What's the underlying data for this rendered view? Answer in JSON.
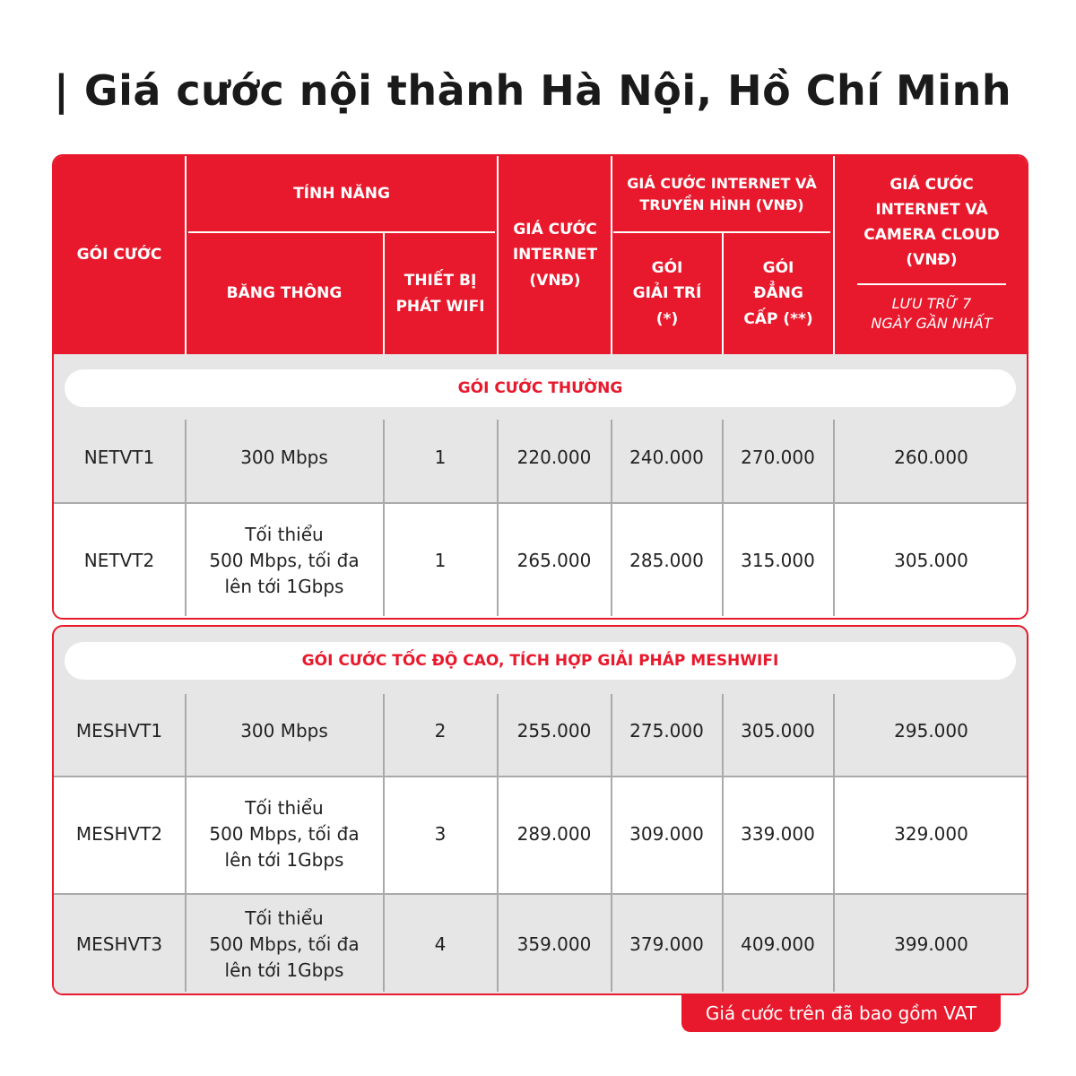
{
  "title": "| Giá cước nội thành Hà Nội, Hồ Chí Minh",
  "header": {
    "goi_cuoc": "GÓI CƯỚC",
    "tinh_nang": "TÍNH NĂNG",
    "bang_thong": "BĂNG THÔNG",
    "thiet_bi": "THIẾT BỊ PHÁT WIFI",
    "gia_internet": "GIÁ CƯỚC INTERNET (VNĐ)",
    "gia_truyen_hinh": "GIÁ CƯỚC INTERNET VÀ TRUYỀN HÌNH (VNĐ)",
    "goi_giai_tri": "GÓI GIẢI TRÍ (*)",
    "goi_dang_cap": "GÓI ĐẲNG CẤP (**)",
    "gia_camera": "GIÁ CƯỚC INTERNET VÀ CAMERA CLOUD (VNĐ)",
    "luu_tru": "LƯU TRỮ 7 NGÀY GẦN NHẤT"
  },
  "sections": [
    {
      "banner": "GÓI CƯỚC THƯỜNG",
      "rows": [
        {
          "name": "NETVT1",
          "bandwidth": "300 Mbps",
          "devices": "1",
          "internet": "220.000",
          "giai_tri": "240.000",
          "dang_cap": "270.000",
          "camera": "260.000"
        },
        {
          "name": "NETVT2",
          "bandwidth": "Tối thiểu\n500 Mbps, tối đa\nlên tới 1Gbps",
          "devices": "1",
          "internet": "265.000",
          "giai_tri": "285.000",
          "dang_cap": "315.000",
          "camera": "305.000"
        }
      ]
    },
    {
      "banner": "GÓI CƯỚC TỐC ĐỘ CAO, TÍCH HỢP GIẢI PHÁP MESHWIFI",
      "rows": [
        {
          "name": "MESHVT1",
          "bandwidth": "300 Mbps",
          "devices": "2",
          "internet": "255.000",
          "giai_tri": "275.000",
          "dang_cap": "305.000",
          "camera": "295.000"
        },
        {
          "name": "MESHVT2",
          "bandwidth": "Tối thiểu\n500 Mbps, tối đa\nlên tới 1Gbps",
          "devices": "3",
          "internet": "289.000",
          "giai_tri": "309.000",
          "dang_cap": "339.000",
          "camera": "329.000"
        },
        {
          "name": "MESHVT3",
          "bandwidth": "Tối thiểu\n500 Mbps, tối đa\nlên tới 1Gbps",
          "devices": "4",
          "internet": "359.000",
          "giai_tri": "379.000",
          "dang_cap": "409.000",
          "camera": "399.000"
        }
      ]
    }
  ],
  "footer_note": "Giá cước trên đã bao gồm VAT",
  "colors": {
    "brand_red": "#e8192c",
    "row_gray": "#e6e6e7"
  }
}
